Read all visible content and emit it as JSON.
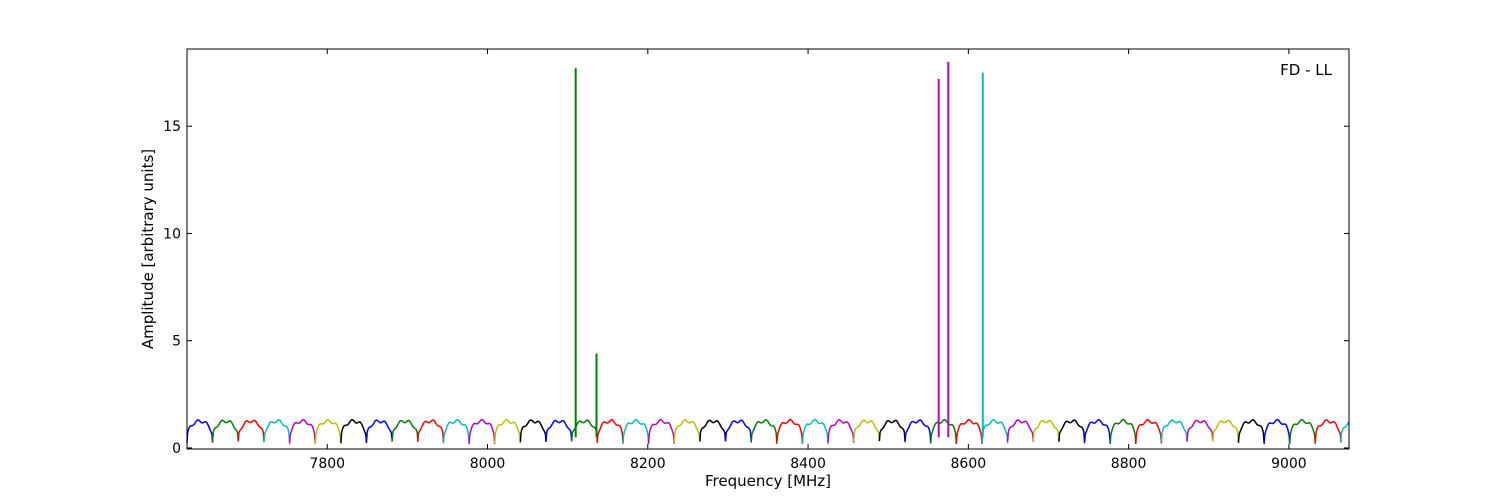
{
  "chart_data": {
    "type": "line",
    "title": "",
    "annotation": "FD - LL",
    "xlabel": "Frequency [MHz]",
    "ylabel": "Amplitude [arbitrary units]",
    "xlim": [
      7625,
      9075
    ],
    "ylim": [
      -0.05,
      18.6
    ],
    "xticks": [
      7800,
      8000,
      8200,
      8400,
      8600,
      8800,
      9000
    ],
    "yticks": [
      0,
      5,
      10,
      15
    ],
    "grid": false,
    "legend": "none",
    "subband_width_mhz": 32,
    "subband_start_mhz": 7625,
    "subband_colors": [
      "#0000ff",
      "#008000",
      "#ff0000",
      "#00bfbf",
      "#bf00bf",
      "#bfbf00",
      "#000000"
    ],
    "baseline": {
      "peak": 1.25,
      "edge": 0.25
    },
    "spikes": [
      {
        "x": 8110,
        "value": 17.7,
        "color": "#008000"
      },
      {
        "x": 8136,
        "value": 4.4,
        "color": "#008000"
      },
      {
        "x": 8563,
        "value": 17.2,
        "color": "#bf00bf"
      },
      {
        "x": 8575,
        "value": 18.0,
        "color": "#bf00bf"
      },
      {
        "x": 8618,
        "value": 17.5,
        "color": "#00bfbf"
      }
    ]
  }
}
